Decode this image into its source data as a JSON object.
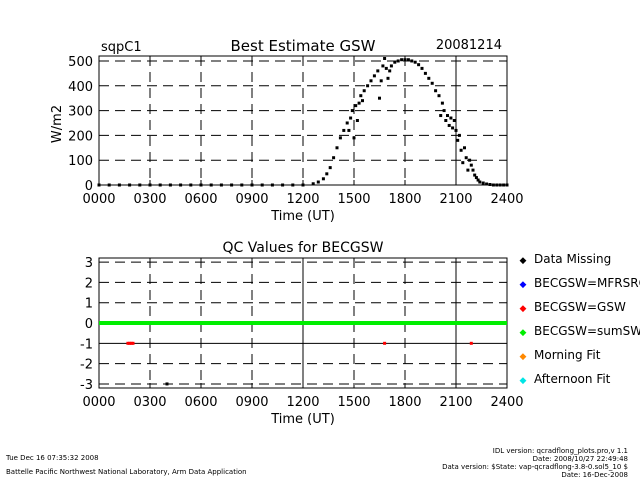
{
  "header": {
    "site": "sqpC1",
    "title": "Best Estimate GSW",
    "date": "20081214"
  },
  "chart_data": [
    {
      "type": "scatter",
      "title": "Best Estimate GSW",
      "xlabel": "Time (UT)",
      "ylabel": "W/m2",
      "xlim": [
        0,
        2400
      ],
      "ylim": [
        0,
        520
      ],
      "xticks": [
        "0000",
        "0300",
        "0600",
        "0900",
        "1200",
        "1500",
        "1800",
        "2100",
        "2400"
      ],
      "yticks": [
        "0",
        "100",
        "200",
        "300",
        "400",
        "500"
      ],
      "grid": true,
      "series": [
        {
          "color": "#000000",
          "x": [
            0,
            60,
            120,
            180,
            240,
            300,
            360,
            420,
            480,
            540,
            600,
            660,
            720,
            780,
            840,
            900,
            960,
            1020,
            1080,
            1140,
            1200,
            1260,
            1290,
            1320,
            1340,
            1360,
            1380,
            1400,
            1420,
            1440,
            1460,
            1470,
            1480,
            1490,
            1500,
            1510,
            1520,
            1530,
            1540,
            1550,
            1560,
            1580,
            1600,
            1620,
            1640,
            1650,
            1660,
            1670,
            1680,
            1690,
            1700,
            1710,
            1720,
            1740,
            1760,
            1780,
            1800,
            1820,
            1840,
            1860,
            1880,
            1900,
            1920,
            1940,
            1960,
            1980,
            2000,
            2010,
            2020,
            2030,
            2040,
            2050,
            2060,
            2070,
            2080,
            2090,
            2100,
            2110,
            2120,
            2130,
            2140,
            2150,
            2160,
            2170,
            2180,
            2190,
            2200,
            2210,
            2220,
            2230,
            2240,
            2260,
            2280,
            2300,
            2320,
            2340,
            2360,
            2380,
            2400
          ],
          "y": [
            0,
            0,
            0,
            0,
            0,
            0,
            0,
            0,
            0,
            0,
            0,
            0,
            0,
            0,
            0,
            0,
            0,
            0,
            0,
            0,
            0,
            5,
            12,
            25,
            45,
            70,
            110,
            150,
            190,
            220,
            250,
            220,
            270,
            300,
            190,
            320,
            260,
            330,
            360,
            340,
            380,
            400,
            420,
            440,
            460,
            350,
            420,
            480,
            510,
            470,
            430,
            460,
            480,
            495,
            500,
            505,
            505,
            505,
            500,
            495,
            485,
            470,
            450,
            430,
            410,
            380,
            360,
            280,
            330,
            300,
            260,
            280,
            240,
            270,
            230,
            260,
            220,
            180,
            200,
            140,
            90,
            150,
            110,
            60,
            100,
            80,
            60,
            40,
            30,
            20,
            12,
            8,
            4,
            2,
            0,
            0,
            0,
            0,
            0
          ]
        }
      ]
    },
    {
      "type": "scatter",
      "title": "QC Values for BECGSW",
      "xlabel": "Time (UT)",
      "xlim": [
        0,
        2400
      ],
      "ylim": [
        -3.2,
        3.2
      ],
      "xticks": [
        "0000",
        "0300",
        "0600",
        "0900",
        "1200",
        "1500",
        "1800",
        "2100",
        "2400"
      ],
      "yticks": [
        "3",
        "2",
        "1",
        "0",
        "-1",
        "-2",
        "-3"
      ],
      "grid": true,
      "series": [
        {
          "name": "Data Missing",
          "color": "#000000",
          "x": [
            400
          ],
          "y": [
            -3
          ]
        },
        {
          "name": "BECGSW=MFRSRG",
          "color": "#0000ff",
          "x": [],
          "y": []
        },
        {
          "name": "BECGSW=GSW",
          "color": "#ff0000",
          "x": [
            170,
            180,
            190,
            200,
            1680,
            2190
          ],
          "y": [
            -1,
            -1,
            -1,
            -1,
            -1,
            -1
          ]
        },
        {
          "name": "BECGSW=sumSW",
          "color": "#00ee00",
          "x": [
            0,
            2400
          ],
          "y": [
            0,
            0
          ],
          "line": true
        },
        {
          "name": "Morning Fit",
          "color": "#ff8800",
          "x": [],
          "y": []
        },
        {
          "name": "Afternoon Fit",
          "color": "#00e5e5",
          "x": [],
          "y": []
        }
      ]
    }
  ],
  "footer": {
    "left1": "Tue Dec 16 07:35:32 2008",
    "left2": "Battelle Pacific Northwest National Laboratory, Arm Data Application",
    "right1": "IDL version: qcradflong_plots.pro,v 1.1",
    "right2": "Date: 2008/10/27 22:49:48",
    "right3": "Data version: $State: vap-qcradflong-3.8-0.sol5_10 $",
    "right4": "Date: 16-Dec-2008"
  },
  "legend_marker": "◆"
}
